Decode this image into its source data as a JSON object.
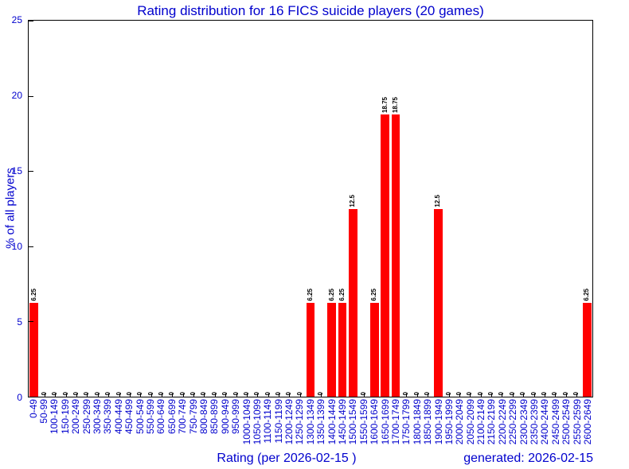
{
  "colors": {
    "bar": "#ff0000",
    "accent_text": "#0000cd",
    "axis": "#000000",
    "background": "#ffffff"
  },
  "footer": {
    "generated_label": "generated: 2026-02-15"
  },
  "chart_data": {
    "type": "bar",
    "title": "Rating distribution for 16 FICS suicide players (20 games)",
    "xlabel": "Rating (per 2026-02-15 )",
    "ylabel": "% of all players",
    "ylim": [
      0,
      25
    ],
    "yticks": [
      "0",
      "5",
      "10",
      "15",
      "20",
      "25"
    ],
    "grid": false,
    "legend": "none",
    "bar_color": "#ff0000",
    "value_labels_shown": true,
    "categories": [
      "0-49",
      "50-99",
      "100-149",
      "150-199",
      "200-249",
      "250-299",
      "300-349",
      "350-399",
      "400-449",
      "450-499",
      "500-549",
      "550-599",
      "600-649",
      "650-699",
      "700-749",
      "750-799",
      "800-849",
      "850-899",
      "900-949",
      "950-999",
      "1000-1049",
      "1050-1099",
      "1100-1149",
      "1150-1199",
      "1200-1249",
      "1250-1299",
      "1300-1349",
      "1350-1399",
      "1400-1449",
      "1450-1499",
      "1500-1549",
      "1550-1599",
      "1600-1649",
      "1650-1699",
      "1700-1749",
      "1750-1799",
      "1800-1849",
      "1850-1899",
      "1900-1949",
      "1950-1999",
      "2000-2049",
      "2050-2099",
      "2100-2149",
      "2150-2199",
      "2200-2249",
      "2250-2299",
      "2300-2349",
      "2350-2399",
      "2400-2449",
      "2450-2499",
      "2500-2549",
      "2550-2599",
      "2600-2649"
    ],
    "values": [
      6.25,
      0,
      0,
      0,
      0,
      0,
      0,
      0,
      0,
      0,
      0,
      0,
      0,
      0,
      0,
      0,
      0,
      0,
      0,
      0,
      0,
      0,
      0,
      0,
      0,
      0,
      6.25,
      0,
      6.25,
      6.25,
      12.5,
      0,
      6.25,
      18.75,
      18.75,
      0,
      0,
      0,
      12.5,
      0,
      0,
      0,
      0,
      0,
      0,
      0,
      0,
      0,
      0,
      0,
      0,
      0,
      6.25
    ]
  }
}
